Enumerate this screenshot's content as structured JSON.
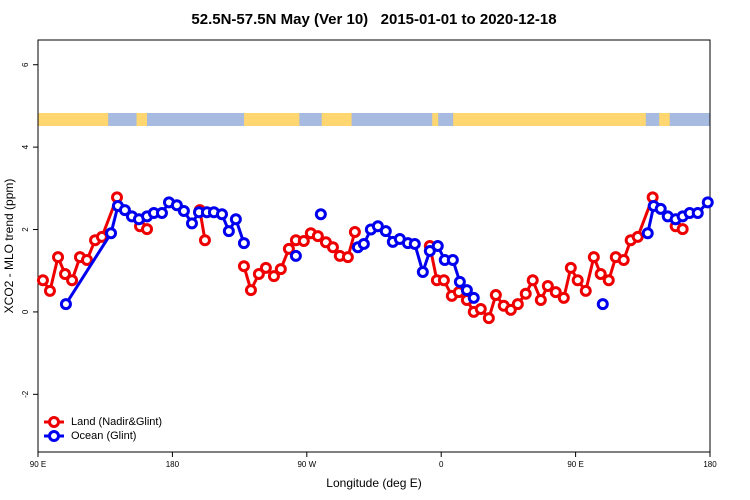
{
  "chart_data": {
    "type": "line",
    "title": "52.5N-57.5N May (Ver 10)   2015-01-01 to 2020-12-18",
    "xlabel": "Longitude (deg E)",
    "ylabel": "XCO2 - MLO trend (ppm)",
    "xlim": [
      90,
      540
    ],
    "xticks": [
      {
        "value": 90,
        "label": "90 E"
      },
      180,
      {
        "value": 270,
        "label": "90 W"
      },
      {
        "value": 360,
        "label": "0"
      },
      {
        "value": 450,
        "label": "90 E"
      },
      {
        "value": 540,
        "label": "180"
      }
    ],
    "ylim": [
      -3.4,
      6.6
    ],
    "yticks": [
      -2,
      0,
      2,
      4,
      6
    ],
    "legend": "bottom-left",
    "series": [
      {
        "name": "Land (Nadir&Glint)",
        "color": "#ee0000",
        "x": [
          93.3,
          98,
          103.4,
          108.1,
          112.8,
          118.1,
          122.8,
          128.2,
          132.8,
          142.9,
          null,
          158.3,
          163,
          null,
          198.4,
          201.8,
          null,
          227.9,
          232.6,
          237.9,
          242.6,
          248,
          252.6,
          258,
          262.7,
          268,
          272.7,
          277.4,
          282.8,
          287.5,
          292.1,
          297.5,
          302.2,
          null,
          352.4,
          357.1,
          361.8,
          367.1,
          371.8,
          377.2,
          381.8,
          386.5,
          391.9,
          396.6,
          401.9,
          406.6,
          411.3,
          416.6,
          421.3,
          426.7,
          431.4,
          436.7,
          442.1,
          446.8,
          451.4,
          456.8,
          462.2,
          466.8,
          472.2,
          476.9,
          482.2,
          486.9,
          491.6,
          501.6,
          null,
          517,
          521.7
        ],
        "values": [
          0.77,
          0.51,
          1.33,
          0.92,
          0.77,
          1.33,
          1.26,
          1.74,
          1.82,
          2.78,
          null,
          2.08,
          2.01,
          null,
          2.47,
          1.74,
          null,
          1.11,
          0.53,
          0.92,
          1.07,
          0.87,
          1.04,
          1.53,
          1.74,
          1.72,
          1.91,
          1.84,
          1.69,
          1.57,
          1.36,
          1.33,
          1.94,
          null,
          1.6,
          0.77,
          0.77,
          0.39,
          0.48,
          0.29,
          0,
          0.07,
          -0.15,
          0.41,
          0.15,
          0.05,
          0.19,
          0.44,
          0.77,
          0.29,
          0.63,
          0.48,
          0.34,
          1.07,
          0.77,
          0.51,
          1.33,
          0.92,
          0.77,
          1.33,
          1.26,
          1.74,
          1.82,
          2.78,
          null,
          2.08,
          2.01
        ]
      },
      {
        "name": "Ocean (Glint)",
        "color": "#0000ee",
        "x": [
          108.7,
          138.9,
          143.5,
          148.2,
          152.9,
          157.6,
          163,
          167.6,
          173,
          177.7,
          183,
          187.7,
          193.1,
          197.8,
          203.1,
          207.8,
          213.2,
          217.8,
          222.5,
          227.9,
          null,
          262.7,
          null,
          279.4,
          null,
          304.2,
          308.2,
          312.9,
          317.6,
          322.9,
          327.6,
          332.3,
          337.7,
          342.3,
          347.7,
          352.4,
          357.7,
          362.4,
          367.8,
          372.5,
          377.2,
          381.8,
          null,
          468.2,
          null,
          498.3,
          502.3,
          507,
          511.7,
          517,
          521.7,
          526.4,
          531.8,
          538.5
        ],
        "values": [
          0.19,
          1.91,
          2.57,
          2.47,
          2.32,
          2.25,
          2.32,
          2.4,
          2.4,
          2.66,
          2.59,
          2.45,
          2.15,
          2.42,
          2.42,
          2.42,
          2.37,
          1.96,
          2.25,
          1.67,
          null,
          1.36,
          null,
          2.37,
          null,
          1.57,
          1.65,
          2.0,
          2.08,
          1.96,
          1.7,
          1.77,
          1.67,
          1.65,
          0.97,
          1.48,
          1.6,
          1.26,
          1.26,
          0.73,
          0.53,
          0.34,
          null,
          0.19,
          null,
          1.91,
          2.57,
          2.5,
          2.32,
          2.25,
          2.32,
          2.4,
          2.4,
          2.66
        ]
      }
    ]
  }
}
